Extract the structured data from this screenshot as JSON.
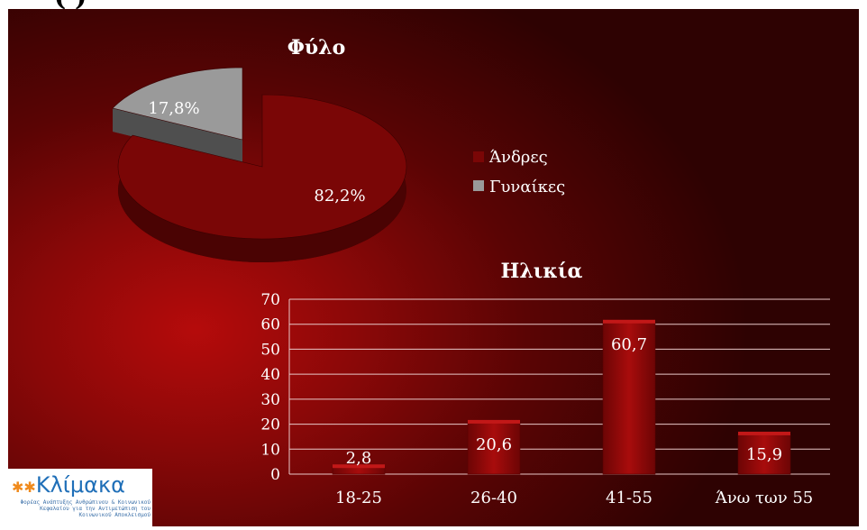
{
  "header": {
    "partial_title": "(   )"
  },
  "chart_data": [
    {
      "type": "pie",
      "title": "Φύλο",
      "categories": [
        "Άνδρες",
        "Γυναίκες"
      ],
      "values": [
        82.2,
        17.8
      ],
      "data_labels": [
        "82,2%",
        "17,8%"
      ],
      "colors": [
        "#7a0606",
        "#9a9a9a"
      ],
      "legend_position": "right"
    },
    {
      "type": "bar",
      "title": "Ηλικία",
      "categories": [
        "18-25",
        "26-40",
        "41-55",
        "Άνω των 55"
      ],
      "values": [
        2.8,
        20.6,
        60.7,
        15.9
      ],
      "data_labels": [
        "2,8",
        "20,6",
        "60,7",
        "15,9"
      ],
      "ylim": [
        0,
        70
      ],
      "yticks": [
        "0",
        "10",
        "20",
        "30",
        "40",
        "50",
        "60",
        "70"
      ],
      "grid": true,
      "color": "#8e0808"
    }
  ],
  "logo": {
    "name": "Κλίμακα",
    "tagline": "Φορέας Ανάπτυξης Ανθρώπινου & Κοινωνικού Κεφαλαίου για την Αντιμετώπιση του Κοινωνικού Αποκλεισμού"
  }
}
